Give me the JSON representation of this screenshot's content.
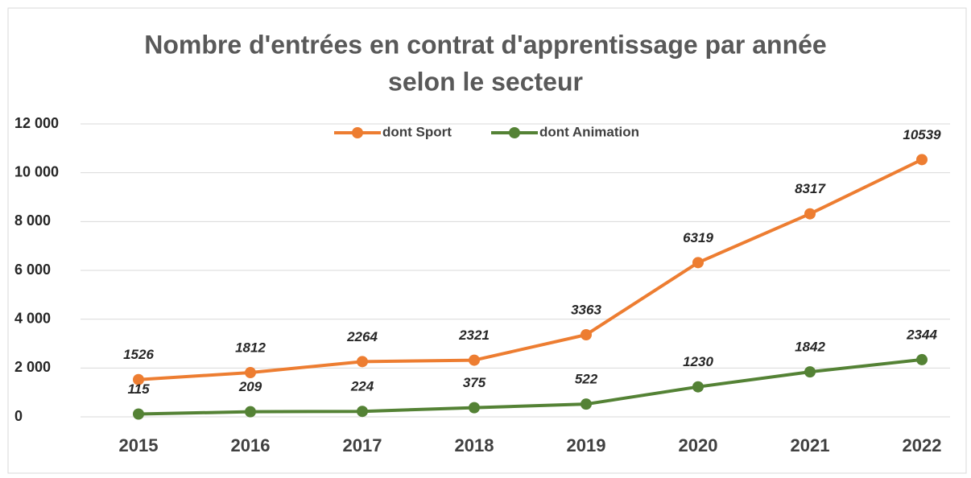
{
  "chart_data": {
    "type": "line",
    "title": [
      "Nombre d'entrées en contrat d'apprentissage par année",
      "selon le secteur"
    ],
    "categories": [
      "2015",
      "2016",
      "2017",
      "2018",
      "2019",
      "2020",
      "2021",
      "2022"
    ],
    "series": [
      {
        "name": "dont Sport",
        "color": "#ed7d31",
        "values": [
          1526,
          1812,
          2264,
          2321,
          3363,
          6319,
          8317,
          10539
        ]
      },
      {
        "name": "dont Animation",
        "color": "#548235",
        "values": [
          115,
          209,
          224,
          375,
          522,
          1230,
          1842,
          2344
        ]
      }
    ],
    "ylim": [
      0,
      12000
    ],
    "yticks": [
      0,
      {
        "value": 2000,
        "label": "2 000"
      },
      {
        "value": 4000,
        "label": "4 000"
      },
      {
        "value": 6000,
        "label": "6 000"
      },
      {
        "value": 8000,
        "label": "8 000"
      },
      {
        "value": 10000,
        "label": "10 000"
      },
      {
        "value": 12000,
        "label": "12 000"
      }
    ],
    "grid": true,
    "legend": "top"
  }
}
